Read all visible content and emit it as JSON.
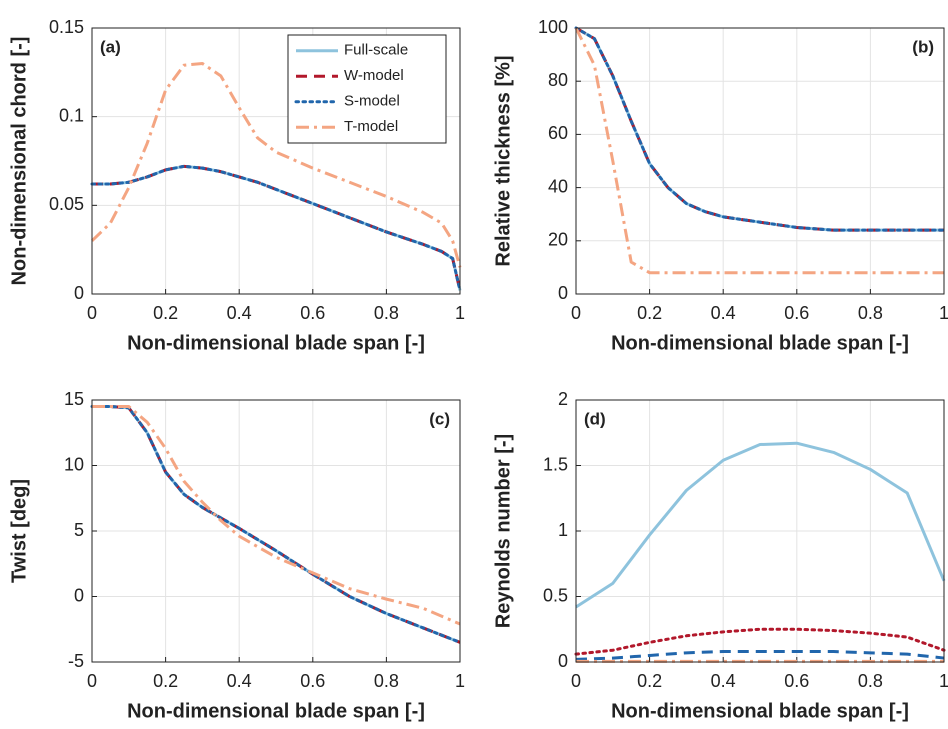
{
  "chart_data": [
    {
      "type": "line",
      "annotation": "(a)",
      "annotation_corner": "upper left",
      "xlabel": "Non-dimensional blade span [-]",
      "ylabel": "Non-dimensional chord [-]",
      "x": [
        0,
        0.05,
        0.1,
        0.15,
        0.2,
        0.25,
        0.3,
        0.35,
        0.4,
        0.45,
        0.5,
        0.6,
        0.7,
        0.8,
        0.9,
        0.95,
        0.98,
        1
      ],
      "series": [
        {
          "name": "Full-scale",
          "color": "#8ec3dd",
          "linestyle": "solid",
          "values": [
            0.062,
            0.062,
            0.063,
            0.066,
            0.07,
            0.072,
            0.071,
            0.069,
            0.066,
            0.063,
            0.059,
            0.051,
            0.043,
            0.035,
            0.028,
            0.024,
            0.02,
            0.002
          ]
        },
        {
          "name": "W-model",
          "color": "#b2182b",
          "linestyle": "dashed",
          "values": [
            0.062,
            0.062,
            0.063,
            0.066,
            0.07,
            0.072,
            0.071,
            0.069,
            0.066,
            0.063,
            0.059,
            0.051,
            0.043,
            0.035,
            0.028,
            0.024,
            0.02,
            0.002
          ]
        },
        {
          "name": "S-model",
          "color": "#2166ac",
          "linestyle": "dotted",
          "values": [
            0.062,
            0.062,
            0.063,
            0.066,
            0.07,
            0.072,
            0.071,
            0.069,
            0.066,
            0.063,
            0.059,
            0.051,
            0.043,
            0.035,
            0.028,
            0.024,
            0.02,
            0.002
          ]
        },
        {
          "name": "T-model",
          "color": "#f4a582",
          "linestyle": "dashdot",
          "values": [
            0.03,
            0.04,
            0.06,
            0.085,
            0.115,
            0.129,
            0.13,
            0.123,
            0.105,
            0.088,
            0.08,
            0.071,
            0.063,
            0.055,
            0.046,
            0.04,
            0.03,
            0.015
          ]
        }
      ],
      "xlim": [
        0,
        1
      ],
      "xticks": [
        0,
        0.2,
        0.4,
        0.6,
        0.8,
        1
      ],
      "ylim": [
        0,
        0.15
      ],
      "yticks": [
        0,
        0.05,
        0.1,
        0.15
      ],
      "grid": true,
      "legend": "upper right"
    },
    {
      "type": "line",
      "annotation": "(b)",
      "annotation_corner": "upper right",
      "xlabel": "Non-dimensional blade span [-]",
      "ylabel": "Relative thickness [%]",
      "x": [
        0,
        0.05,
        0.1,
        0.15,
        0.2,
        0.25,
        0.3,
        0.35,
        0.4,
        0.5,
        0.6,
        0.7,
        0.8,
        0.9,
        1
      ],
      "series": [
        {
          "name": "Full-scale",
          "color": "#8ec3dd",
          "linestyle": "solid",
          "values": [
            100,
            96,
            82,
            65,
            49,
            40,
            34,
            31,
            29,
            27,
            25,
            24,
            24,
            24,
            24
          ]
        },
        {
          "name": "W-model",
          "color": "#b2182b",
          "linestyle": "dashed",
          "values": [
            100,
            96,
            82,
            65,
            49,
            40,
            34,
            31,
            29,
            27,
            25,
            24,
            24,
            24,
            24
          ]
        },
        {
          "name": "S-model",
          "color": "#2166ac",
          "linestyle": "dotted",
          "values": [
            100,
            96,
            82,
            65,
            49,
            40,
            34,
            31,
            29,
            27,
            25,
            24,
            24,
            24,
            24
          ]
        },
        {
          "name": "T-model",
          "color": "#f4a582",
          "linestyle": "dashdot",
          "values": [
            100,
            86,
            50,
            12,
            8,
            8,
            8,
            8,
            8,
            8,
            8,
            8,
            8,
            8,
            8
          ]
        }
      ],
      "xlim": [
        0,
        1
      ],
      "xticks": [
        0,
        0.2,
        0.4,
        0.6,
        0.8,
        1
      ],
      "ylim": [
        0,
        100
      ],
      "yticks": [
        0,
        20,
        40,
        60,
        80,
        100
      ],
      "grid": true
    },
    {
      "type": "line",
      "annotation": "(c)",
      "annotation_corner": "upper right",
      "xlabel": "Non-dimensional blade span [-]",
      "ylabel": "Twist [deg]",
      "x": [
        0,
        0.05,
        0.1,
        0.15,
        0.2,
        0.25,
        0.3,
        0.35,
        0.4,
        0.5,
        0.6,
        0.7,
        0.8,
        0.9,
        1
      ],
      "series": [
        {
          "name": "Full-scale",
          "color": "#8ec3dd",
          "linestyle": "solid",
          "values": [
            14.5,
            14.5,
            14.4,
            12.5,
            9.5,
            7.8,
            6.8,
            6.0,
            5.2,
            3.5,
            1.7,
            0,
            -1.3,
            -2.4,
            -3.5
          ]
        },
        {
          "name": "W-model",
          "color": "#b2182b",
          "linestyle": "dashed",
          "values": [
            14.5,
            14.5,
            14.4,
            12.5,
            9.5,
            7.8,
            6.8,
            6.0,
            5.2,
            3.5,
            1.7,
            0,
            -1.3,
            -2.4,
            -3.5
          ]
        },
        {
          "name": "S-model",
          "color": "#2166ac",
          "linestyle": "dotted",
          "values": [
            14.5,
            14.5,
            14.4,
            12.5,
            9.5,
            7.8,
            6.8,
            6.0,
            5.2,
            3.5,
            1.7,
            0,
            -1.3,
            -2.4,
            -3.5
          ]
        },
        {
          "name": "T-model",
          "color": "#f4a582",
          "linestyle": "dashdot",
          "values": [
            14.5,
            14.5,
            14.5,
            13.3,
            11.3,
            8.8,
            7.2,
            5.8,
            4.6,
            3.0,
            1.8,
            0.6,
            -0.2,
            -0.9,
            -2.1
          ]
        }
      ],
      "xlim": [
        0,
        1
      ],
      "xticks": [
        0,
        0.2,
        0.4,
        0.6,
        0.8,
        1
      ],
      "ylim": [
        -5,
        15
      ],
      "yticks": [
        -5,
        0,
        5,
        10,
        15
      ],
      "grid": true
    },
    {
      "type": "line",
      "annotation": "(d)",
      "annotation_corner": "upper left",
      "xlabel": "Non-dimensional blade span [-]",
      "ylabel": "Reynolds number [-]",
      "x": [
        0,
        0.1,
        0.2,
        0.3,
        0.4,
        0.5,
        0.6,
        0.7,
        0.8,
        0.9,
        1
      ],
      "series": [
        {
          "name": "Full-scale",
          "color": "#8ec3dd",
          "linestyle": "solid",
          "values": [
            0.42,
            0.6,
            0.97,
            1.31,
            1.54,
            1.66,
            1.67,
            1.6,
            1.47,
            1.29,
            0.62
          ]
        },
        {
          "name": "W-model",
          "color": "#b2182b",
          "linestyle": "dotted",
          "values": [
            0.06,
            0.09,
            0.15,
            0.2,
            0.23,
            0.25,
            0.25,
            0.24,
            0.22,
            0.19,
            0.09
          ]
        },
        {
          "name": "S-model",
          "color": "#2166ac",
          "linestyle": "dashed",
          "values": [
            0.02,
            0.03,
            0.05,
            0.07,
            0.08,
            0.08,
            0.08,
            0.08,
            0.07,
            0.06,
            0.03
          ]
        },
        {
          "name": "T-model",
          "color": "#f4a582",
          "linestyle": "dashdot",
          "values": [
            0.005,
            0.005,
            0.005,
            0.005,
            0.005,
            0.005,
            0.005,
            0.005,
            0.005,
            0.005,
            0.005
          ]
        }
      ],
      "xlim": [
        0,
        1
      ],
      "xticks": [
        0,
        0.2,
        0.4,
        0.6,
        0.8,
        1
      ],
      "ylim": [
        0,
        2
      ],
      "yticks": [
        0,
        0.5,
        1,
        1.5,
        2
      ],
      "grid": true
    }
  ]
}
